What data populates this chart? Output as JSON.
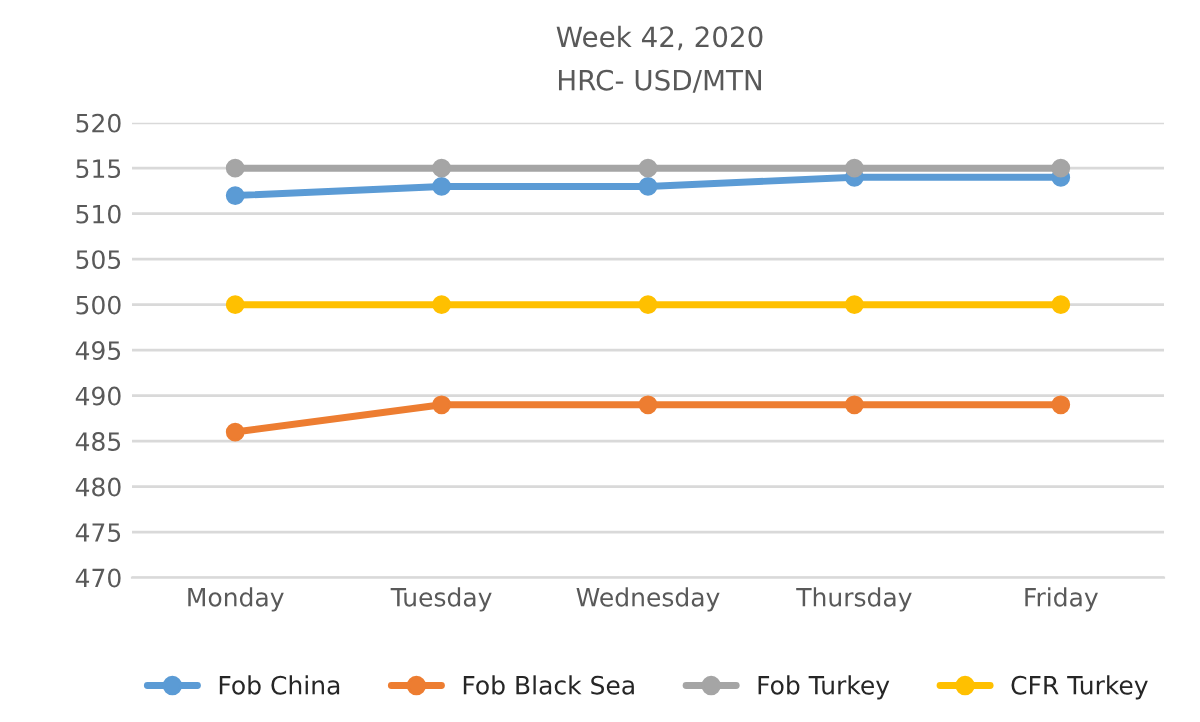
{
  "chart_data": {
    "type": "line",
    "title": "Week 42, 2020",
    "subtitle": "HRC- USD/MTN",
    "categories": [
      "Monday",
      "Tuesday",
      "Wednesday",
      "Thursday",
      "Friday"
    ],
    "series": [
      {
        "name": "Fob China",
        "color": "#5b9bd5",
        "values": [
          512,
          513,
          513,
          514,
          514
        ]
      },
      {
        "name": "Fob Black Sea",
        "color": "#ed7d31",
        "values": [
          486,
          489,
          489,
          489,
          489
        ]
      },
      {
        "name": "Fob Turkey",
        "color": "#a5a5a5",
        "values": [
          515,
          515,
          515,
          515,
          515
        ]
      },
      {
        "name": "CFR Turkey",
        "color": "#ffc000",
        "values": [
          500,
          500,
          500,
          500,
          500
        ]
      }
    ],
    "ylim": [
      470,
      520
    ],
    "yticks": [
      470,
      475,
      480,
      485,
      490,
      495,
      500,
      505,
      510,
      515,
      520
    ],
    "grid": "y",
    "legend": "bottom",
    "marker": "circle",
    "line_style": "solid"
  }
}
